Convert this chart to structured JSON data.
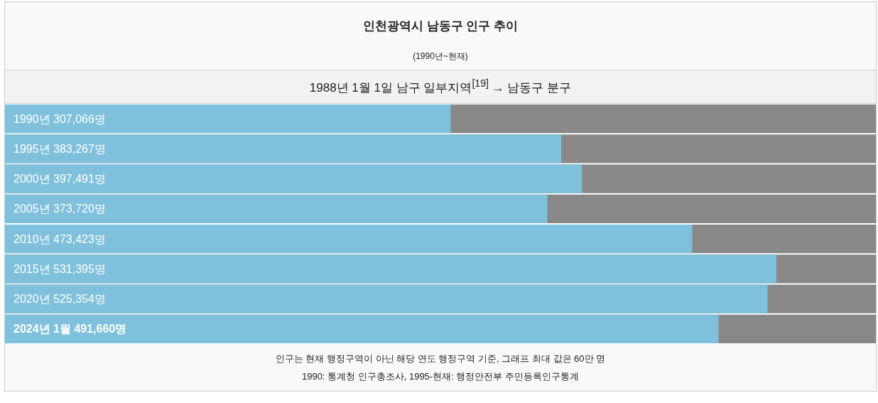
{
  "chart_data": {
    "type": "bar",
    "orientation": "horizontal",
    "title": "인천광역시 남동구 인구 추이",
    "subtitle": "(1990년~현재)",
    "categories": [
      "1990년",
      "1995년",
      "2000년",
      "2005년",
      "2010년",
      "2015년",
      "2020년",
      "2024년 1월"
    ],
    "values": [
      307066,
      383267,
      397491,
      373720,
      473423,
      531395,
      525354,
      491660
    ],
    "value_labels": [
      "307,066명",
      "383,267명",
      "397,491명",
      "373,720명",
      "473,423명",
      "531,395명",
      "525,354명",
      "491,660명"
    ],
    "color": "#7fc0dc",
    "tick_labels": false,
    "annotations": [
      "1988년 1월 1일 남구 일부지역$^{[19]}$ → 남동구 분구",
      "인구는 현재 행정구역이 아닌 해당 연도 행정구역 기준, 그래프 최대 값은 60만 명",
      "1990: 통계청 인구총조사, 1995-현재: 행정안전부 주민등록인구통계"
    ]
  }
}
